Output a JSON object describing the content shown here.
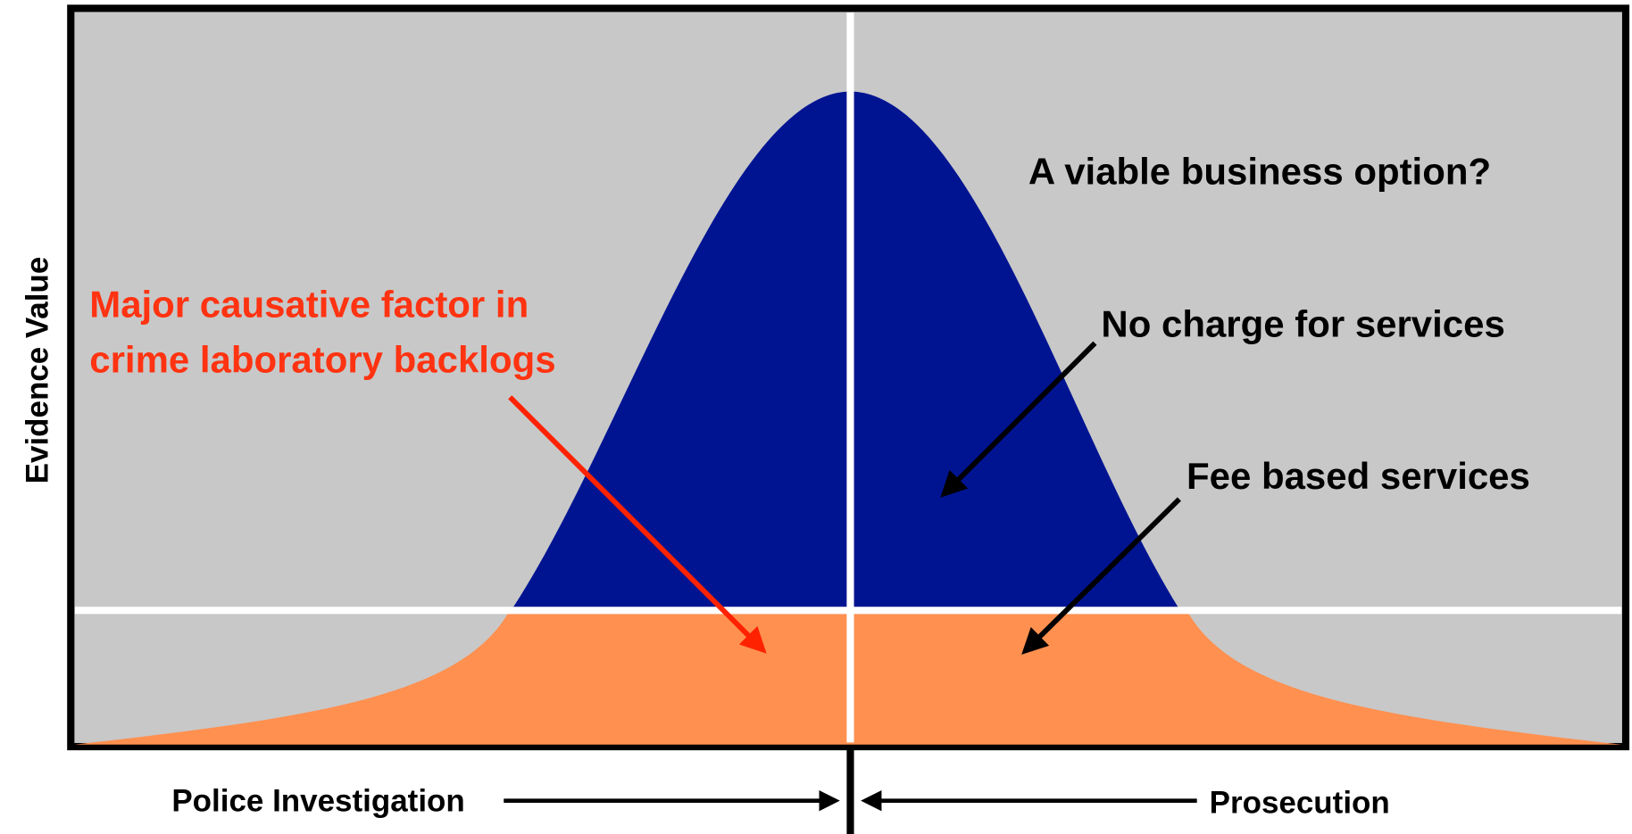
{
  "axis_label": "Evidence Value",
  "annotations": {
    "business_option": "A viable business option?",
    "no_charge": "No charge for services",
    "fee_based": "Fee based services",
    "backlog": {
      "lines": [
        "Major causative factor in",
        "crime laboratory backlogs"
      ]
    }
  },
  "bottom_labels": {
    "left": "Police Investigation",
    "right": "Prosecution"
  }
}
